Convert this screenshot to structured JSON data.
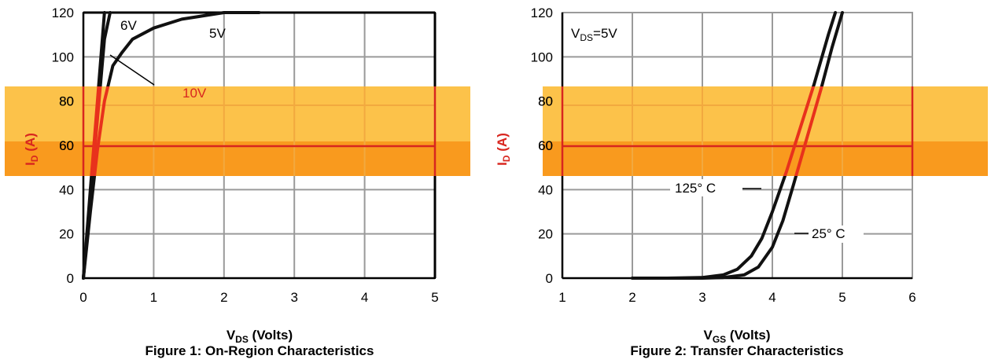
{
  "colors": {
    "grid": "#9a9a9a",
    "frame": "#000000",
    "curve": "#111111",
    "band_light": "#fcc24a",
    "band_dark": "#f99a1e",
    "band_grid": "#f2a93f",
    "band_curve": "#e8311c",
    "band_line": "#d8261f"
  },
  "charts": [
    {
      "caption": "Figure 1: On-Region Characteristics",
      "xlabel_main": "V",
      "xlabel_sub": "DS",
      "xlabel_rest": " (Volts)",
      "ylabel_main": "I",
      "ylabel_sub": "D",
      "ylabel_rest": " (A)",
      "annotations": [
        "6V",
        "5V",
        "10V"
      ]
    },
    {
      "caption": "Figure 2: Transfer Characteristics",
      "xlabel_main": "V",
      "xlabel_sub": "GS",
      "xlabel_rest": " (Volts)",
      "ylabel_main": "I",
      "ylabel_sub": "D",
      "ylabel_rest": " (A)",
      "annotations": [
        "VDS=5V",
        "125° C",
        "25° C"
      ]
    }
  ],
  "chart_data": [
    {
      "type": "line",
      "title": "Figure 1: On-Region Characteristics",
      "xlabel": "VDS (Volts)",
      "ylabel": "ID (A)",
      "xlim": [
        0,
        5
      ],
      "ylim": [
        0,
        120
      ],
      "xticks": [
        "0",
        "1",
        "2",
        "3",
        "4",
        "5"
      ],
      "yticks": [
        "0",
        "20",
        "40",
        "60",
        "80",
        "100",
        "120"
      ],
      "grid": true,
      "series": [
        {
          "name": "10V",
          "x": [
            0,
            0.1,
            0.2,
            0.3
          ],
          "y": [
            0,
            40,
            80,
            120
          ]
        },
        {
          "name": "6V",
          "x": [
            0,
            0.1,
            0.2,
            0.3,
            0.38
          ],
          "y": [
            0,
            36,
            72,
            108,
            120
          ]
        },
        {
          "name": "5V",
          "x": [
            0,
            0.1,
            0.2,
            0.3,
            0.42,
            0.55,
            0.7,
            1.0,
            1.4,
            2.0,
            2.5
          ],
          "y": [
            0,
            30,
            58,
            80,
            96,
            102,
            108,
            113,
            117,
            120,
            120
          ]
        }
      ]
    },
    {
      "type": "line",
      "title": "Figure 2: Transfer Characteristics",
      "xlabel": "VGS (Volts)",
      "ylabel": "ID (A)",
      "xlim": [
        1,
        6
      ],
      "ylim": [
        0,
        120
      ],
      "xticks": [
        "1",
        "2",
        "3",
        "4",
        "5",
        "6"
      ],
      "yticks": [
        "0",
        "20",
        "40",
        "60",
        "80",
        "100",
        "120"
      ],
      "grid": true,
      "series": [
        {
          "name": "125° C",
          "x": [
            2.0,
            2.5,
            3.0,
            3.3,
            3.5,
            3.7,
            3.85,
            4.0,
            4.2,
            4.4,
            4.6,
            4.8,
            4.9
          ],
          "y": [
            0,
            0,
            0.3,
            1.5,
            4,
            10,
            18,
            30,
            48,
            68,
            88,
            110,
            120
          ]
        },
        {
          "name": "25° C",
          "x": [
            2.0,
            2.5,
            3.0,
            3.3,
            3.6,
            3.8,
            4.0,
            4.15,
            4.3,
            4.5,
            4.7,
            4.85,
            5.0
          ],
          "y": [
            0,
            0,
            0,
            0.3,
            1.5,
            5,
            14,
            26,
            42,
            64,
            86,
            104,
            120
          ]
        }
      ]
    }
  ]
}
